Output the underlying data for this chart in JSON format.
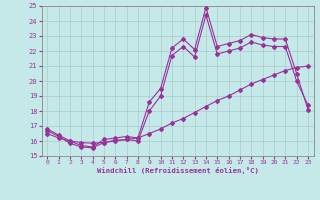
{
  "xlabel": "Windchill (Refroidissement éolien,°C)",
  "xlim": [
    -0.5,
    23.5
  ],
  "ylim": [
    15,
    25
  ],
  "yticks": [
    15,
    16,
    17,
    18,
    19,
    20,
    21,
    22,
    23,
    24,
    25
  ],
  "xticks": [
    0,
    1,
    2,
    3,
    4,
    5,
    6,
    7,
    8,
    9,
    10,
    11,
    12,
    13,
    14,
    15,
    16,
    17,
    18,
    19,
    20,
    21,
    22,
    23
  ],
  "bg_color": "#c5e8e8",
  "line_color": "#993399",
  "line1_x": [
    0,
    1,
    2,
    3,
    4,
    5,
    6,
    7,
    8,
    9,
    10,
    11,
    12,
    13,
    14,
    15,
    16,
    17,
    18,
    19,
    20,
    21,
    22,
    23
  ],
  "line1_y": [
    16.8,
    16.4,
    16.0,
    15.7,
    15.6,
    16.1,
    16.2,
    16.3,
    16.2,
    18.6,
    19.5,
    22.2,
    22.8,
    22.1,
    24.9,
    22.3,
    22.5,
    22.7,
    23.1,
    22.9,
    22.8,
    22.8,
    20.5,
    18.1
  ],
  "line2_x": [
    0,
    1,
    2,
    3,
    4,
    5,
    6,
    7,
    8,
    9,
    10,
    11,
    12,
    13,
    14,
    15,
    16,
    17,
    18,
    19,
    20,
    21,
    22,
    23
  ],
  "line2_y": [
    16.7,
    16.3,
    15.85,
    15.6,
    15.55,
    15.9,
    16.05,
    16.1,
    16.0,
    18.0,
    19.0,
    21.7,
    22.3,
    21.6,
    24.4,
    21.8,
    22.0,
    22.2,
    22.6,
    22.4,
    22.3,
    22.3,
    20.0,
    18.4
  ],
  "line3_x": [
    0,
    1,
    2,
    3,
    4,
    5,
    6,
    7,
    8,
    9,
    10,
    11,
    12,
    13,
    14,
    15,
    16,
    17,
    18,
    19,
    20,
    21,
    22,
    23
  ],
  "line3_y": [
    16.5,
    16.2,
    16.0,
    15.9,
    15.85,
    15.9,
    16.0,
    16.1,
    16.2,
    16.5,
    16.8,
    17.2,
    17.5,
    17.9,
    18.3,
    18.7,
    19.0,
    19.4,
    19.8,
    20.1,
    20.4,
    20.7,
    20.9,
    21.0
  ],
  "line_width": 0.8,
  "marker": "D",
  "marker_size": 2.0
}
